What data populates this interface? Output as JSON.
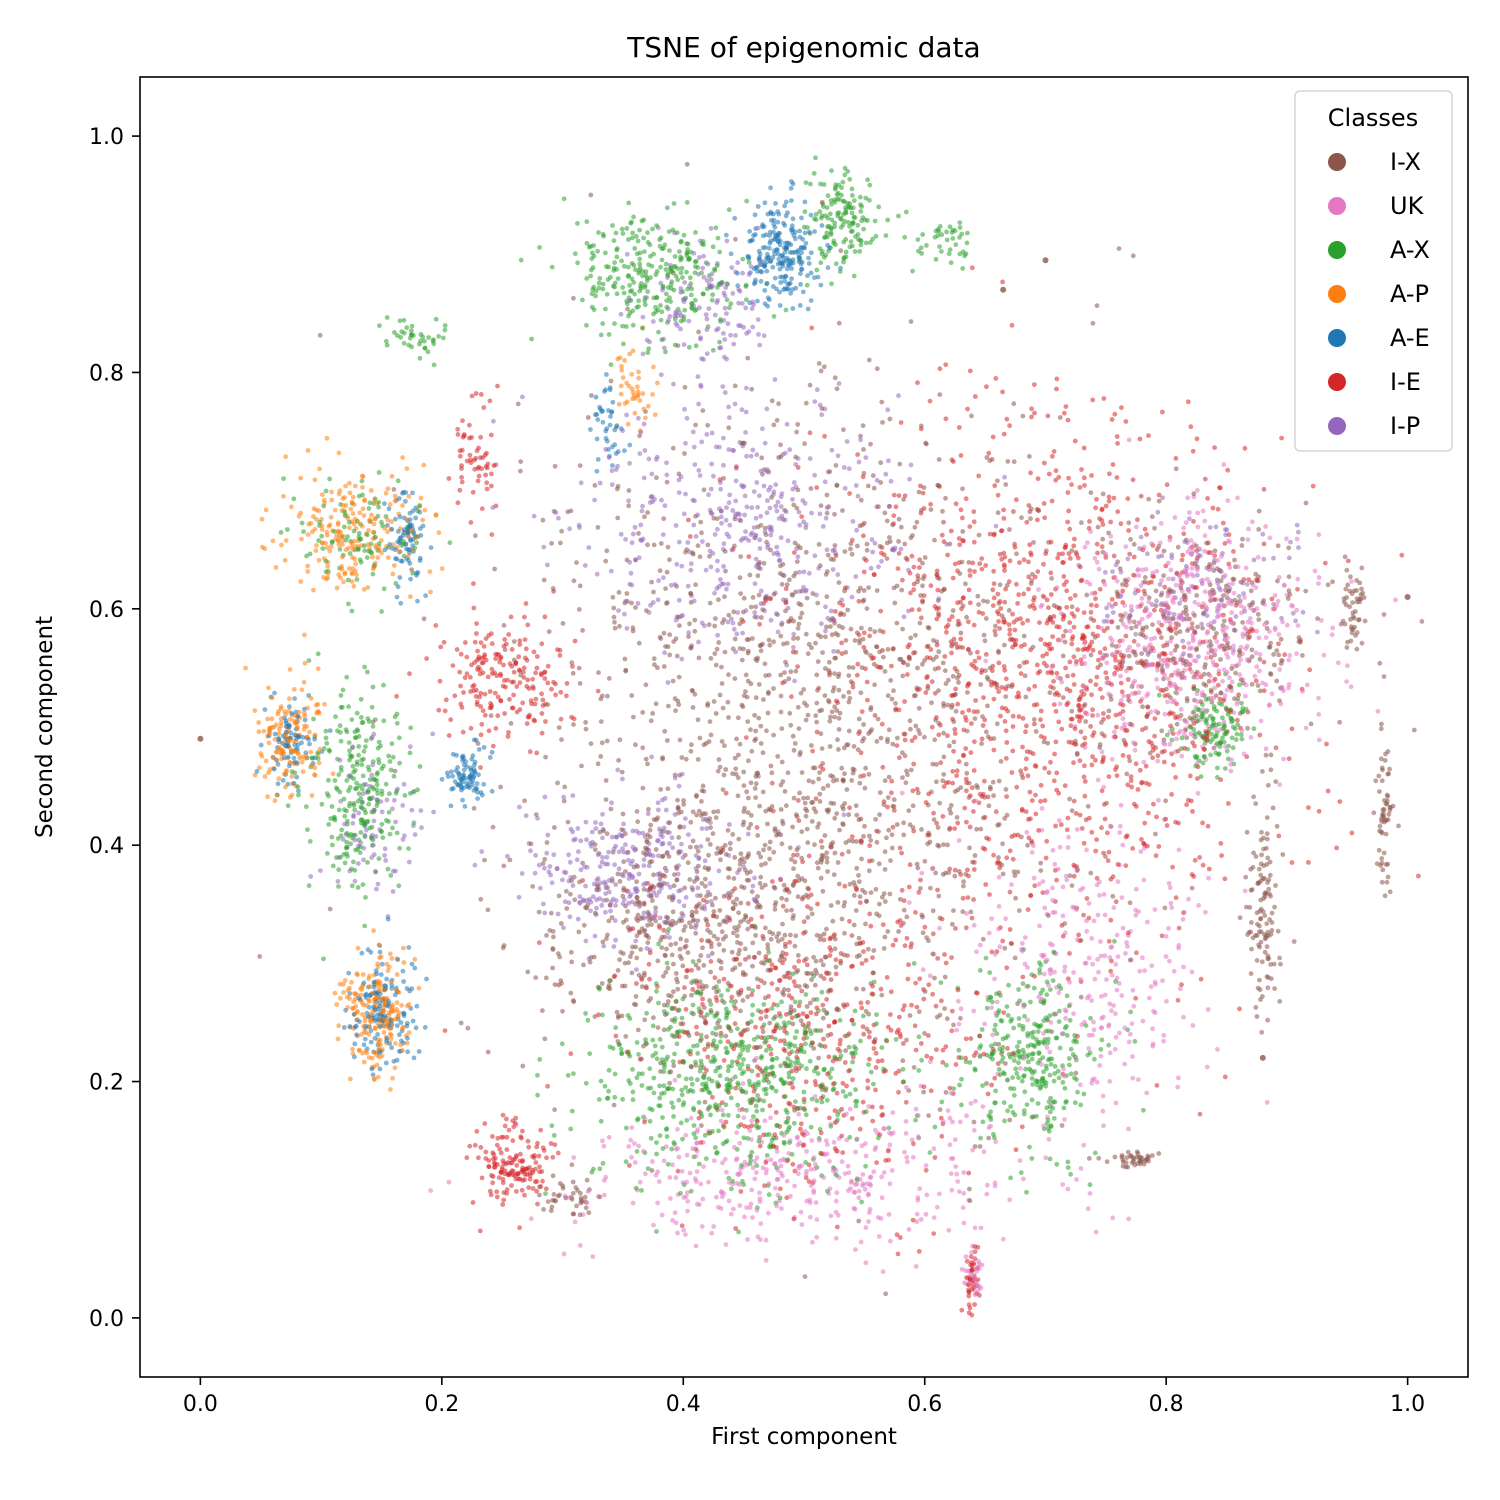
{
  "chart_data": {
    "type": "scatter",
    "title": "TSNE of epigenomic data",
    "xlabel": "First component",
    "ylabel": "Second component",
    "xlim": [
      -0.05,
      1.05
    ],
    "ylim": [
      -0.05,
      1.05
    ],
    "xticks": [
      {
        "value": 0.0,
        "label": "0.0"
      },
      {
        "value": 0.2,
        "label": "0.2"
      },
      {
        "value": 0.4,
        "label": "0.4"
      },
      {
        "value": 0.6,
        "label": "0.6"
      },
      {
        "value": 0.8,
        "label": "0.8"
      },
      {
        "value": 1.0,
        "label": "1.0"
      }
    ],
    "yticks": [
      {
        "value": 0.0,
        "label": "0.0"
      },
      {
        "value": 0.2,
        "label": "0.2"
      },
      {
        "value": 0.4,
        "label": "0.4"
      },
      {
        "value": 0.6,
        "label": "0.6"
      },
      {
        "value": 0.8,
        "label": "0.8"
      },
      {
        "value": 1.0,
        "label": "1.0"
      }
    ],
    "grid": false,
    "legend": {
      "title": "Classes",
      "placement": "top-right",
      "entries": [
        {
          "label": "I-X",
          "color": "#8c564b"
        },
        {
          "label": "UK",
          "color": "#e377c2"
        },
        {
          "label": "A-X",
          "color": "#2ca02c"
        },
        {
          "label": "A-P",
          "color": "#ff7f0e"
        },
        {
          "label": "A-E",
          "color": "#1f77b4"
        },
        {
          "label": "I-E",
          "color": "#d62728"
        },
        {
          "label": "I-P",
          "color": "#9467bd"
        }
      ]
    },
    "series": [
      {
        "name": "I-X",
        "color": "#8c564b",
        "clusters": [
          {
            "cx": 0.5,
            "cy": 0.5,
            "rx": 0.2,
            "ry": 0.26,
            "n": 1500
          },
          {
            "cx": 0.42,
            "cy": 0.33,
            "rx": 0.12,
            "ry": 0.1,
            "n": 500
          },
          {
            "cx": 0.82,
            "cy": 0.58,
            "rx": 0.1,
            "ry": 0.08,
            "n": 300
          },
          {
            "cx": 0.3,
            "cy": 0.1,
            "rx": 0.03,
            "ry": 0.02,
            "n": 40
          },
          {
            "cx": 0.88,
            "cy": 0.35,
            "rx": 0.012,
            "ry": 0.09,
            "n": 120
          },
          {
            "cx": 0.955,
            "cy": 0.6,
            "rx": 0.01,
            "ry": 0.03,
            "n": 50
          },
          {
            "cx": 0.98,
            "cy": 0.43,
            "rx": 0.008,
            "ry": 0.06,
            "n": 60
          },
          {
            "cx": 0.775,
            "cy": 0.135,
            "rx": 0.02,
            "ry": 0.006,
            "n": 40
          }
        ]
      },
      {
        "name": "UK",
        "color": "#e377c2",
        "clusters": [
          {
            "cx": 0.82,
            "cy": 0.58,
            "rx": 0.1,
            "ry": 0.1,
            "n": 500
          },
          {
            "cx": 0.5,
            "cy": 0.12,
            "rx": 0.18,
            "ry": 0.06,
            "n": 400
          },
          {
            "cx": 0.73,
            "cy": 0.3,
            "rx": 0.1,
            "ry": 0.12,
            "n": 300
          },
          {
            "cx": 0.64,
            "cy": 0.04,
            "rx": 0.008,
            "ry": 0.02,
            "n": 30
          }
        ]
      },
      {
        "name": "A-X",
        "color": "#2ca02c",
        "clusters": [
          {
            "cx": 0.38,
            "cy": 0.88,
            "rx": 0.06,
            "ry": 0.05,
            "n": 300
          },
          {
            "cx": 0.53,
            "cy": 0.93,
            "rx": 0.03,
            "ry": 0.04,
            "n": 150
          },
          {
            "cx": 0.13,
            "cy": 0.45,
            "rx": 0.035,
            "ry": 0.08,
            "n": 260
          },
          {
            "cx": 0.45,
            "cy": 0.2,
            "rx": 0.12,
            "ry": 0.08,
            "n": 600
          },
          {
            "cx": 0.69,
            "cy": 0.22,
            "rx": 0.05,
            "ry": 0.07,
            "n": 300
          },
          {
            "cx": 0.84,
            "cy": 0.5,
            "rx": 0.025,
            "ry": 0.03,
            "n": 120
          },
          {
            "cx": 0.62,
            "cy": 0.91,
            "rx": 0.025,
            "ry": 0.02,
            "n": 40
          },
          {
            "cx": 0.18,
            "cy": 0.83,
            "rx": 0.025,
            "ry": 0.02,
            "n": 40
          },
          {
            "cx": 0.13,
            "cy": 0.66,
            "rx": 0.05,
            "ry": 0.04,
            "n": 100
          }
        ]
      },
      {
        "name": "A-P",
        "color": "#ff7f0e",
        "clusters": [
          {
            "cx": 0.13,
            "cy": 0.665,
            "rx": 0.05,
            "ry": 0.045,
            "n": 220
          },
          {
            "cx": 0.075,
            "cy": 0.49,
            "rx": 0.025,
            "ry": 0.04,
            "n": 150
          },
          {
            "cx": 0.145,
            "cy": 0.26,
            "rx": 0.025,
            "ry": 0.045,
            "n": 200
          },
          {
            "cx": 0.36,
            "cy": 0.79,
            "rx": 0.015,
            "ry": 0.03,
            "n": 40
          }
        ]
      },
      {
        "name": "A-E",
        "color": "#1f77b4",
        "clusters": [
          {
            "cx": 0.48,
            "cy": 0.9,
            "rx": 0.03,
            "ry": 0.04,
            "n": 220
          },
          {
            "cx": 0.15,
            "cy": 0.26,
            "rx": 0.025,
            "ry": 0.045,
            "n": 150
          },
          {
            "cx": 0.22,
            "cy": 0.46,
            "rx": 0.015,
            "ry": 0.025,
            "n": 80
          },
          {
            "cx": 0.075,
            "cy": 0.49,
            "rx": 0.02,
            "ry": 0.035,
            "n": 80
          },
          {
            "cx": 0.17,
            "cy": 0.66,
            "rx": 0.015,
            "ry": 0.04,
            "n": 80
          },
          {
            "cx": 0.34,
            "cy": 0.76,
            "rx": 0.015,
            "ry": 0.04,
            "n": 40
          }
        ]
      },
      {
        "name": "I-E",
        "color": "#d62728",
        "clusters": [
          {
            "cx": 0.7,
            "cy": 0.55,
            "rx": 0.17,
            "ry": 0.2,
            "n": 1200
          },
          {
            "cx": 0.52,
            "cy": 0.25,
            "rx": 0.15,
            "ry": 0.13,
            "n": 500
          },
          {
            "cx": 0.25,
            "cy": 0.54,
            "rx": 0.05,
            "ry": 0.05,
            "n": 200
          },
          {
            "cx": 0.26,
            "cy": 0.13,
            "rx": 0.03,
            "ry": 0.03,
            "n": 150
          },
          {
            "cx": 0.23,
            "cy": 0.73,
            "rx": 0.015,
            "ry": 0.05,
            "n": 60
          },
          {
            "cx": 0.64,
            "cy": 0.03,
            "rx": 0.006,
            "ry": 0.025,
            "n": 40
          }
        ]
      },
      {
        "name": "I-P",
        "color": "#9467bd",
        "clusters": [
          {
            "cx": 0.45,
            "cy": 0.67,
            "rx": 0.12,
            "ry": 0.1,
            "n": 400
          },
          {
            "cx": 0.36,
            "cy": 0.38,
            "rx": 0.08,
            "ry": 0.06,
            "n": 300
          },
          {
            "cx": 0.42,
            "cy": 0.86,
            "rx": 0.05,
            "ry": 0.05,
            "n": 120
          },
          {
            "cx": 0.82,
            "cy": 0.62,
            "rx": 0.08,
            "ry": 0.06,
            "n": 120
          },
          {
            "cx": 0.15,
            "cy": 0.42,
            "rx": 0.04,
            "ry": 0.06,
            "n": 80
          }
        ]
      }
    ],
    "outliers": [
      {
        "x": 0.0,
        "y": 0.49,
        "color": "#8c564b"
      },
      {
        "x": 0.7,
        "y": 0.895,
        "color": "#8c564b"
      },
      {
        "x": 0.665,
        "y": 0.87,
        "color": "#8c564b"
      },
      {
        "x": 0.88,
        "y": 0.22,
        "color": "#8c564b"
      },
      {
        "x": 1.0,
        "y": 0.61,
        "color": "#8c564b"
      }
    ]
  }
}
